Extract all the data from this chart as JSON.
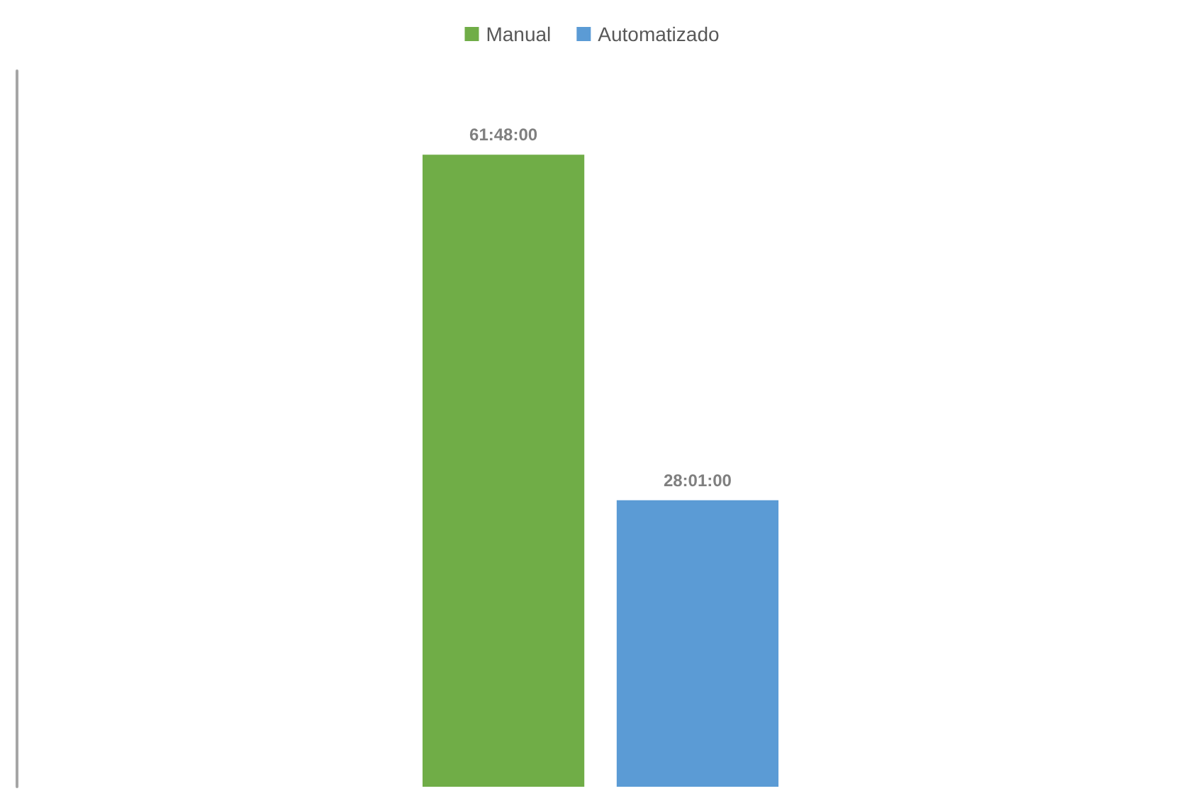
{
  "chart_data": {
    "type": "bar",
    "categories": [
      null
    ],
    "series": [
      {
        "name": "Manual",
        "color": "#70ad47",
        "values": [
          61.8
        ],
        "value_labels": [
          "61:48:00"
        ]
      },
      {
        "name": "Automatizado",
        "color": "#5b9bd5",
        "values": [
          28.0167
        ],
        "value_labels": [
          "28:01:00"
        ]
      }
    ],
    "legend": "top",
    "grid": false,
    "tick_labels": false
  }
}
